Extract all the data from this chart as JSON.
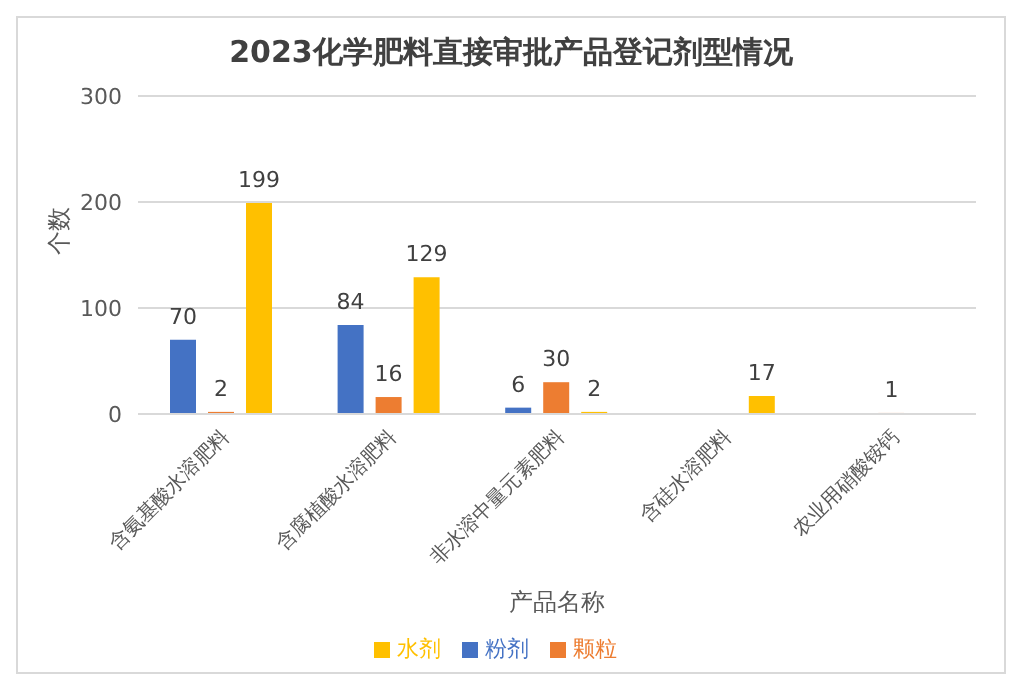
{
  "chart_data": {
    "type": "bar",
    "title": "2023化学肥料直接审批产品登记剂型情况",
    "xlabel": "产品名称",
    "ylabel": "个数",
    "categories": [
      "含氨基酸水溶肥料",
      "含腐植酸水溶肥料",
      "非水溶中量元素肥料",
      "含硅水溶肥料",
      "农业用硝酸铵钙"
    ],
    "series": [
      {
        "name": "粉剂",
        "color": "#4472c4",
        "values": [
          70,
          84,
          6,
          null,
          null
        ]
      },
      {
        "name": "颗粒",
        "color": "#ed7d31",
        "values": [
          2,
          16,
          30,
          null,
          1
        ]
      },
      {
        "name": "水剂",
        "color": "#ffc000",
        "values": [
          199,
          129,
          2,
          17,
          null
        ]
      }
    ],
    "ylim": [
      0,
      300
    ],
    "yticks": [
      0,
      100,
      200,
      300
    ],
    "grid": "y",
    "legend": "bottom",
    "data_labels": true
  }
}
